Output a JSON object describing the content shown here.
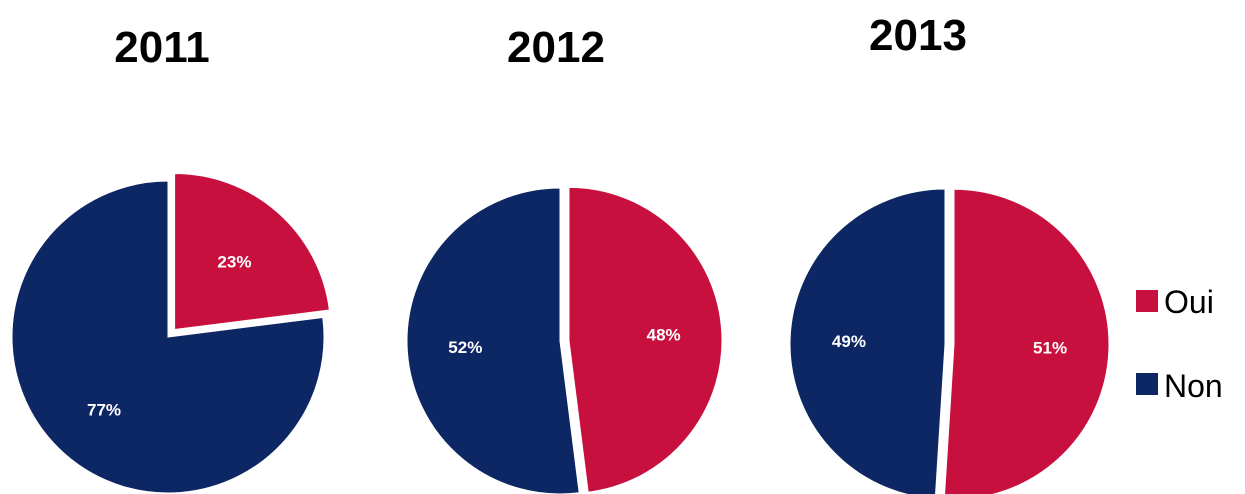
{
  "chart_data": [
    {
      "type": "pie",
      "title": "2011",
      "slices": [
        {
          "label": "Oui",
          "value": 23,
          "display": "23%",
          "color": "#c8103e",
          "exploded": true
        },
        {
          "label": "Non",
          "value": 77,
          "display": "77%",
          "color": "#0d2664",
          "exploded": false
        }
      ]
    },
    {
      "type": "pie",
      "title": "2012",
      "slices": [
        {
          "label": "Oui",
          "value": 48,
          "display": "48%",
          "color": "#c8103e",
          "exploded": true
        },
        {
          "label": "Non",
          "value": 52,
          "display": "52%",
          "color": "#0d2664",
          "exploded": false
        }
      ]
    },
    {
      "type": "pie",
      "title": "2013",
      "slices": [
        {
          "label": "Oui",
          "value": 51,
          "display": "51%",
          "color": "#c8103e",
          "exploded": true
        },
        {
          "label": "Non",
          "value": 49,
          "display": "49%",
          "color": "#0d2664",
          "exploded": false
        }
      ]
    }
  ],
  "legend": {
    "position": "right",
    "items": [
      {
        "label": "Oui",
        "color": "#c8103e"
      },
      {
        "label": "Non",
        "color": "#0d2664"
      }
    ]
  }
}
